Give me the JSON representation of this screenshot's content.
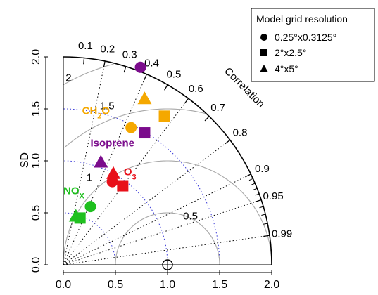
{
  "chart_data": {
    "type": "taylor",
    "ylabel": "SD",
    "corr_axis_label": "Correlation",
    "sd_range": [
      0,
      2
    ],
    "sd_ticks": [
      "0.0",
      "0.5",
      "1.0",
      "1.5",
      "2.0"
    ],
    "correlation_ticks": [
      "0.1",
      "0.2",
      "0.3",
      "0.4",
      "0.5",
      "0.6",
      "0.7",
      "0.8",
      "0.9",
      "0.95",
      "0.99"
    ],
    "rms_contours": [
      "0.5",
      "1",
      "1.5",
      "2"
    ],
    "reference_sd": 1.0,
    "legend": {
      "title": "Model grid resolution",
      "entries": [
        {
          "marker": "circle",
          "label": "0.25°x0.3125°"
        },
        {
          "marker": "square",
          "label": "2°x2.5°"
        },
        {
          "marker": "triangle",
          "label": "4°x5°"
        }
      ]
    },
    "series": [
      {
        "name": "CH2O",
        "label_main": "CH",
        "label_sub": "2",
        "label_tail": "O",
        "color": "#F5A800",
        "points": [
          {
            "marker": "circle",
            "x": 0.65,
            "y": 1.32
          },
          {
            "marker": "square",
            "x": 0.97,
            "y": 1.43
          },
          {
            "marker": "triangle",
            "x": 0.78,
            "y": 1.6
          }
        ]
      },
      {
        "name": "Isoprene",
        "label_main": "Isoprene",
        "label_sub": "",
        "label_tail": "",
        "color": "#7B0C8C",
        "points": [
          {
            "marker": "circle",
            "x": 0.74,
            "y": 1.9
          },
          {
            "marker": "square",
            "x": 0.78,
            "y": 1.27
          },
          {
            "marker": "triangle",
            "x": 0.36,
            "y": 0.99
          }
        ]
      },
      {
        "name": "O3",
        "label_main": "O",
        "label_sub": "3",
        "label_tail": "",
        "color": "#E8101A",
        "points": [
          {
            "marker": "circle",
            "x": 0.47,
            "y": 0.8
          },
          {
            "marker": "square",
            "x": 0.57,
            "y": 0.76
          },
          {
            "marker": "triangle",
            "x": 0.48,
            "y": 0.88
          }
        ]
      },
      {
        "name": "NOx",
        "label_main": "NO",
        "label_sub": "X",
        "label_tail": "",
        "color": "#1FC01F",
        "points": [
          {
            "marker": "circle",
            "x": 0.26,
            "y": 0.56
          },
          {
            "marker": "square",
            "x": 0.16,
            "y": 0.45
          },
          {
            "marker": "triangle",
            "x": 0.12,
            "y": 0.47
          }
        ]
      }
    ]
  }
}
